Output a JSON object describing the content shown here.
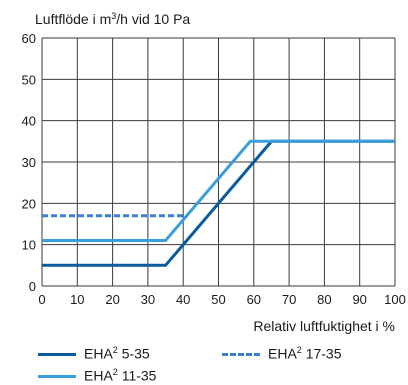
{
  "chart_data": {
    "type": "line",
    "title_main": "Luftflöde i m",
    "title_sup": "3",
    "title_rest": "/h vid 10 Pa",
    "xlabel": "Relativ luftfuktighet i %",
    "x_ticks": [
      0,
      10,
      20,
      30,
      40,
      50,
      60,
      70,
      80,
      90,
      100
    ],
    "y_ticks": [
      0,
      10,
      20,
      30,
      40,
      50,
      60
    ],
    "xlim": [
      0,
      100
    ],
    "ylim": [
      0,
      60
    ],
    "grid": true,
    "series": [
      {
        "name_main": "EHA",
        "name_sup": "2",
        "name_rest": " 5-35",
        "color": "#0a5a9e",
        "dash": false,
        "x": [
          0,
          35,
          65,
          100
        ],
        "y": [
          5,
          5,
          35,
          35
        ]
      },
      {
        "name_main": "EHA",
        "name_sup": "2",
        "name_rest": " 11-35",
        "color": "#3a9fd8",
        "dash": false,
        "x": [
          0,
          35,
          59,
          100
        ],
        "y": [
          11,
          11,
          35,
          35
        ]
      },
      {
        "name_main": "EHA",
        "name_sup": "2",
        "name_rest": " 17-35",
        "color": "#3a7fd0",
        "dash": true,
        "x": [
          0,
          41
        ],
        "y": [
          17,
          17
        ]
      }
    ]
  }
}
